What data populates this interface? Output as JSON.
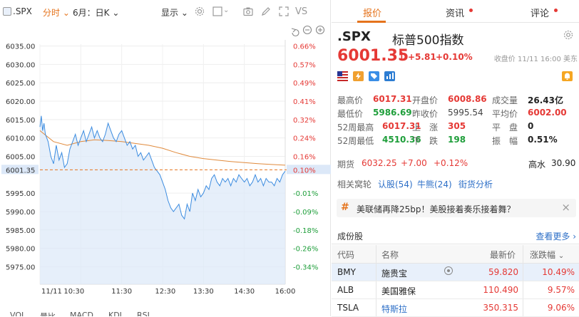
{
  "toolbar": {
    "symbol": ".SPX",
    "period": "分时",
    "kline": "6月：日K",
    "display": "显示",
    "vs": "VS"
  },
  "chart_data": {
    "type": "line",
    "prev_close": 5995.54,
    "y_ticks": [
      6035,
      6030,
      6025,
      6020,
      6015,
      6010,
      6005,
      6001.35,
      5995,
      5990,
      5985,
      5980,
      5975
    ],
    "y_tick_labels": [
      "6035.00",
      "6030.00",
      "6025.00",
      "6020.00",
      "6015.00",
      "6010.00",
      "6005.00",
      "6001.35",
      "5995.00",
      "5990.00",
      "5985.00",
      "5980.00",
      "5975.00"
    ],
    "pct_labels": [
      "0.66%",
      "0.57%",
      "0.49%",
      "0.41%",
      "0.32%",
      "0.24%",
      "0.16%",
      "0.10%",
      "-0.01%",
      "-0.09%",
      "-0.18%",
      "-0.26%",
      "-0.34%"
    ],
    "x_labels": [
      "11/11",
      "10:30",
      "11:30",
      "12:30",
      "13:30",
      "14:30",
      "16:00"
    ],
    "ylim": [
      5972,
      6037
    ],
    "current": 6001.35,
    "price_series": [
      [
        0,
        6013
      ],
      [
        1,
        6016
      ],
      [
        2,
        6012
      ],
      [
        3,
        6014
      ],
      [
        4,
        6011
      ],
      [
        6,
        6009
      ],
      [
        8,
        6005
      ],
      [
        10,
        6003
      ],
      [
        12,
        6008
      ],
      [
        14,
        6004
      ],
      [
        16,
        6006
      ],
      [
        18,
        6002
      ],
      [
        20,
        6003
      ],
      [
        22,
        6007
      ],
      [
        24,
        6009
      ],
      [
        26,
        6011
      ],
      [
        28,
        6008
      ],
      [
        30,
        6010
      ],
      [
        32,
        6012
      ],
      [
        34,
        6009
      ],
      [
        36,
        6011
      ],
      [
        38,
        6013
      ],
      [
        40,
        6010
      ],
      [
        42,
        6012
      ],
      [
        44,
        6010
      ],
      [
        46,
        6009
      ],
      [
        48,
        6011
      ],
      [
        50,
        6014
      ],
      [
        52,
        6012
      ],
      [
        54,
        6010
      ],
      [
        56,
        6009
      ],
      [
        58,
        6011
      ],
      [
        60,
        6012
      ],
      [
        62,
        6010
      ],
      [
        64,
        6008
      ],
      [
        66,
        6009
      ],
      [
        68,
        6007
      ],
      [
        70,
        6008
      ],
      [
        72,
        6005
      ],
      [
        74,
        6006
      ],
      [
        76,
        6004
      ],
      [
        78,
        6005
      ],
      [
        80,
        6006
      ],
      [
        82,
        6004
      ],
      [
        84,
        6002
      ],
      [
        86,
        6001
      ],
      [
        88,
        6000
      ],
      [
        90,
        5998
      ],
      [
        92,
        5996
      ],
      [
        94,
        5993
      ],
      [
        96,
        5991
      ],
      [
        98,
        5990
      ],
      [
        100,
        5991
      ],
      [
        102,
        5992
      ],
      [
        104,
        5989
      ],
      [
        106,
        5988
      ],
      [
        108,
        5992
      ],
      [
        110,
        5990
      ],
      [
        112,
        5995
      ],
      [
        114,
        5993
      ],
      [
        116,
        5996
      ],
      [
        118,
        5994
      ],
      [
        120,
        5995
      ],
      [
        122,
        5997
      ],
      [
        124,
        5996
      ],
      [
        126,
        5999
      ],
      [
        128,
        6000
      ],
      [
        130,
        5998
      ],
      [
        132,
        5997
      ],
      [
        134,
        5999
      ],
      [
        136,
        5998
      ],
      [
        138,
        5999
      ],
      [
        140,
        5997
      ],
      [
        142,
        5999
      ],
      [
        144,
        5998
      ],
      [
        146,
        6000
      ],
      [
        148,
        5999
      ],
      [
        150,
        5998
      ],
      [
        152,
        5999
      ],
      [
        154,
        5997
      ],
      [
        156,
        5998
      ],
      [
        158,
        6000
      ],
      [
        160,
        5998
      ],
      [
        162,
        5999
      ],
      [
        164,
        5997
      ],
      [
        166,
        5999
      ],
      [
        168,
        5998
      ],
      [
        170,
        5998
      ],
      [
        172,
        5997
      ],
      [
        174,
        5999
      ],
      [
        176,
        5998
      ],
      [
        178,
        6000
      ],
      [
        180,
        6001
      ]
    ],
    "avg_series": [
      [
        0,
        6012
      ],
      [
        10,
        6009
      ],
      [
        20,
        6008
      ],
      [
        30,
        6009
      ],
      [
        40,
        6009.5
      ],
      [
        50,
        6009.3
      ],
      [
        60,
        6009
      ],
      [
        70,
        6008.5
      ],
      [
        80,
        6008
      ],
      [
        90,
        6007.2
      ],
      [
        100,
        6006
      ],
      [
        110,
        6005
      ],
      [
        120,
        6004.4
      ],
      [
        130,
        6004
      ],
      [
        140,
        6003.6
      ],
      [
        150,
        6003.3
      ],
      [
        160,
        6003
      ],
      [
        170,
        6002.8
      ],
      [
        180,
        6002.6
      ]
    ]
  },
  "chart_tabs": [
    "VOL",
    "量比",
    "MACD",
    "KDJ",
    "RSI"
  ],
  "quote": {
    "tabs": [
      "报价",
      "资讯",
      "评论"
    ],
    "symbol": ".SPX",
    "name": "标普500指数",
    "price": "6001.35",
    "arrow": "↑",
    "change": "+5.81",
    "change_pct": "+0.10%",
    "close_info": "收盘价 11/11 16:00 美东",
    "stats": [
      {
        "k": "最高价",
        "v": "6017.31",
        "c": "red"
      },
      {
        "k": "开盘价",
        "v": "6008.86",
        "c": "red"
      },
      {
        "k": "成交量",
        "v": "26.43亿",
        "c": "dark"
      },
      {
        "k": "最低价",
        "v": "5986.69",
        "c": "green"
      },
      {
        "k": "昨收价",
        "v": "5995.54",
        "c": "gray"
      },
      {
        "k": "平均价",
        "v": "6002.00",
        "c": "red"
      },
      {
        "k": "52周最高",
        "v": "6017.31",
        "c": "red"
      },
      {
        "k": "上　涨",
        "v": "305",
        "c": "red"
      },
      {
        "k": "平　盘",
        "v": "0",
        "c": "dark"
      },
      {
        "k": "52周最低",
        "v": "4510.36",
        "c": "green"
      },
      {
        "k": "下　跌",
        "v": "198",
        "c": "green"
      },
      {
        "k": "振　幅",
        "v": "0.51%",
        "c": "dark"
      }
    ],
    "futures_label": "期货",
    "futures_price": "6032.25",
    "futures_change": "+7.00",
    "futures_pct": "+0.12%",
    "level_label": "高水",
    "level_value": "30.90",
    "warrants_label": "相关窝轮",
    "bull": "认股(54)",
    "cbbc": "牛熊(24)",
    "street": "街货分析",
    "news": "美联储再降25bp！美股接着奏乐接着舞？"
  },
  "constituents": {
    "title": "成份股",
    "more": "查看更多",
    "headers": [
      "代码",
      "名称",
      "最新价",
      "涨跌幅"
    ],
    "rows": [
      {
        "code": "BMY",
        "name": "施贵宝",
        "price": "59.820",
        "pct": "10.49%"
      },
      {
        "code": "ALB",
        "name": "美国雅保",
        "price": "110.490",
        "pct": "9.57%"
      },
      {
        "code": "TSLA",
        "name": "特斯拉",
        "price": "350.315",
        "pct": "9.06%"
      }
    ]
  }
}
